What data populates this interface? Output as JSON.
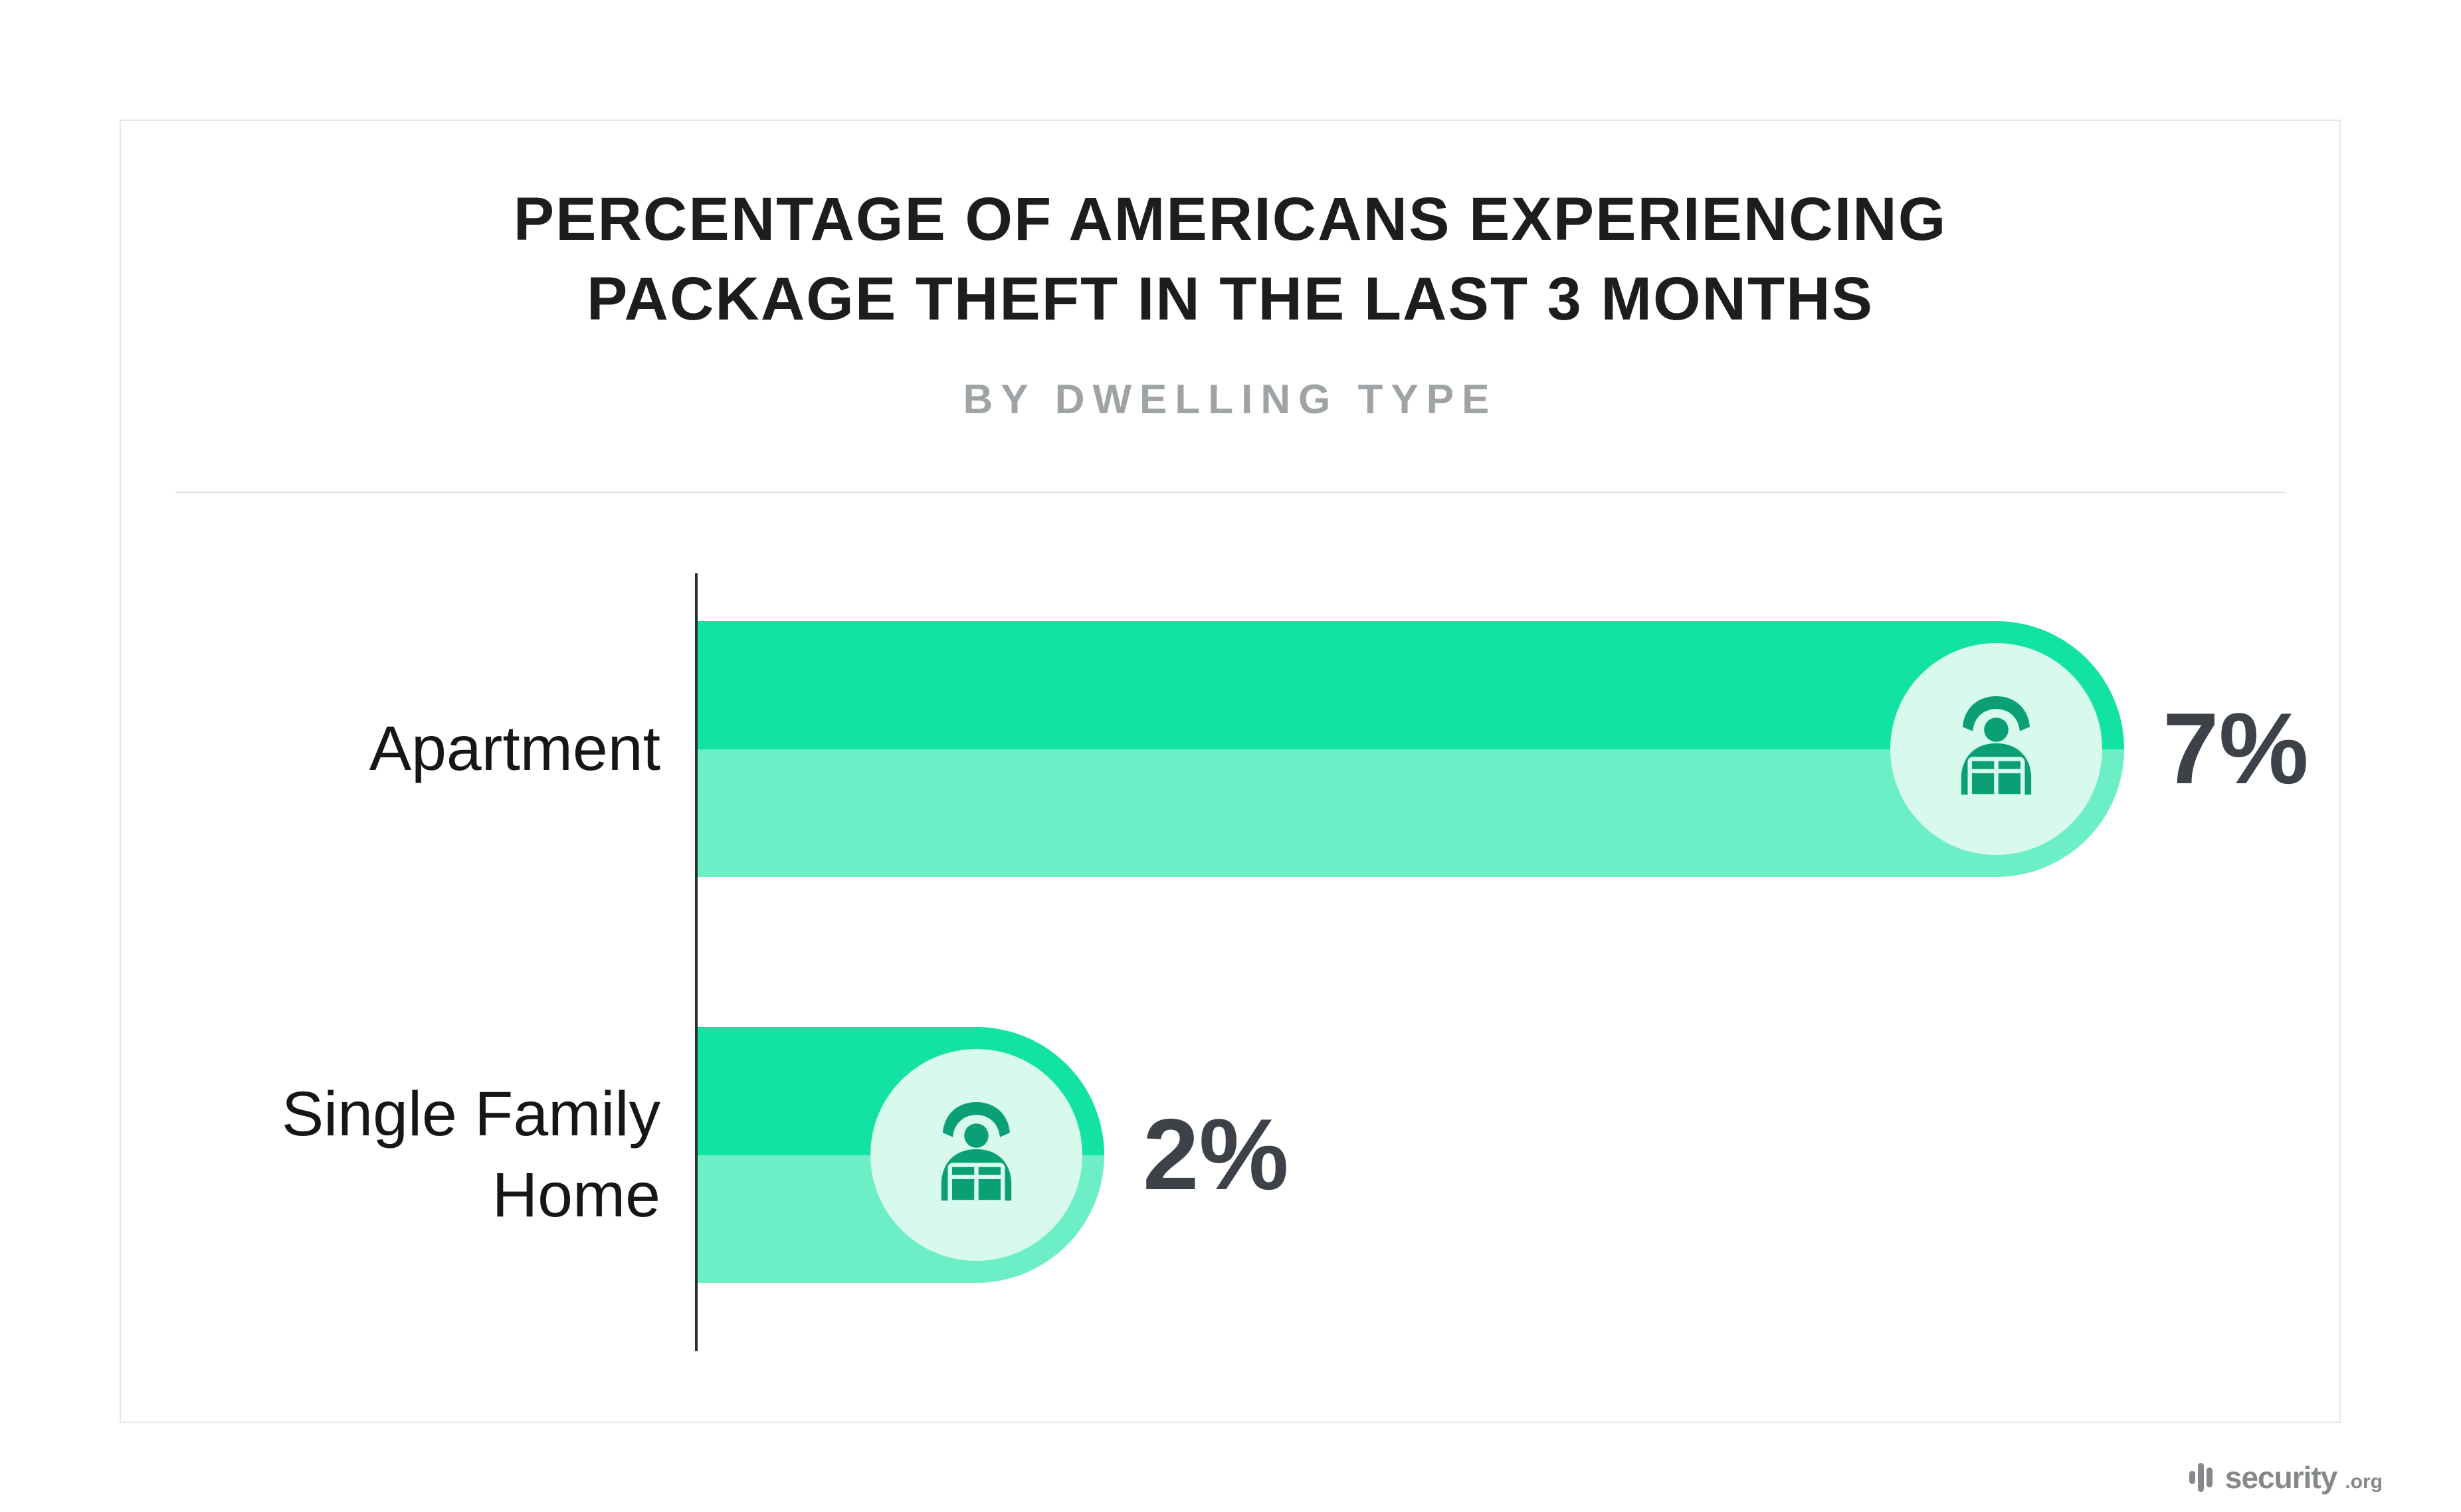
{
  "header": {
    "title_line1": "PERCENTAGE OF AMERICANS EXPERIENCING",
    "title_line2": "PACKAGE THEFT IN THE LAST 3 MONTHS",
    "subtitle": "BY DWELLING TYPE"
  },
  "chart_data": {
    "type": "bar",
    "orientation": "horizontal",
    "title": "PERCENTAGE OF AMERICANS EXPERIENCING PACKAGE THEFT IN THE LAST 3 MONTHS",
    "subtitle": "BY DWELLING TYPE",
    "categories": [
      "Apartment",
      "Single Family Home"
    ],
    "values": [
      7,
      2
    ],
    "unit": "%",
    "value_labels": [
      "7%",
      "2%"
    ],
    "xlim": [
      0,
      8
    ],
    "grid": "off",
    "legend": "none",
    "bar_icon": "package-thief-icon"
  },
  "rows": [
    {
      "category": "Apartment",
      "value_label": "7%"
    },
    {
      "category": "Single Family Home",
      "value_label": "2%"
    }
  ],
  "footer": {
    "brand": "security",
    "brand_suffix": ".org"
  },
  "colors": {
    "bar_top": "#12e2a2",
    "bar_bottom": "#6ceec6",
    "icon_badge_bg": "#d7faec",
    "icon": "#0a9f75",
    "title": "#1b1d1f",
    "subtitle": "#9ea3a6",
    "value_label": "#3c4247",
    "category": "#141618",
    "divider": "#dee0e1",
    "axis": "#2a2d2f",
    "card_border": "#e4e6e7",
    "brand": "#85898c"
  }
}
